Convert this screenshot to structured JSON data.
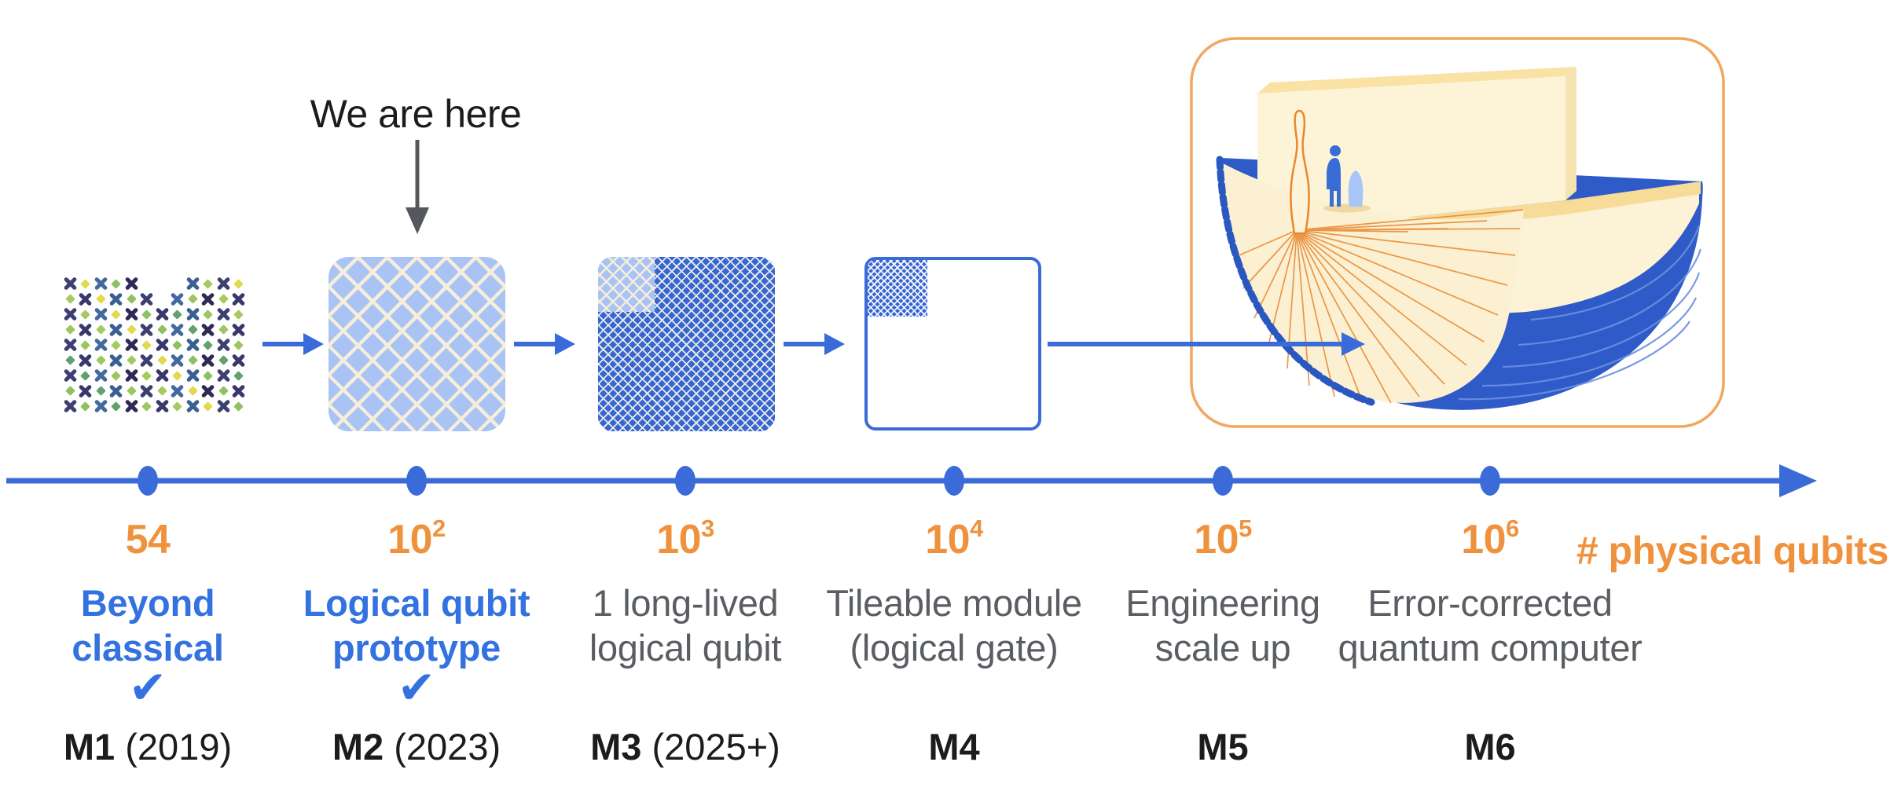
{
  "header": {
    "we_are_here": "We are here"
  },
  "axis": {
    "label": "# physical qubits"
  },
  "milestones": [
    {
      "count": "54",
      "sup": "",
      "line1": "Beyond",
      "line2": "classical",
      "status": "done",
      "check": "✔",
      "m_id": "M1",
      "m_suffix": " (2019)"
    },
    {
      "count": "10",
      "sup": "2",
      "line1": "Logical qubit",
      "line2": "prototype",
      "status": "done",
      "check": "✔",
      "m_id": "M2",
      "m_suffix": " (2023)"
    },
    {
      "count": "10",
      "sup": "3",
      "line1": "1 long-lived",
      "line2": "logical qubit",
      "status": "future",
      "check": "",
      "m_id": "M3",
      "m_suffix": " (2025+)"
    },
    {
      "count": "10",
      "sup": "4",
      "line1": "Tileable module",
      "line2": "(logical gate)",
      "status": "future",
      "check": "",
      "m_id": "M4",
      "m_suffix": ""
    },
    {
      "count": "10",
      "sup": "5",
      "line1": "Engineering",
      "line2": "scale up",
      "status": "future",
      "check": "",
      "m_id": "M5",
      "m_suffix": ""
    },
    {
      "count": "10",
      "sup": "6",
      "line1": "Error-corrected",
      "line2": "quantum computer",
      "status": "future",
      "check": "",
      "m_id": "M6",
      "m_suffix": ""
    }
  ],
  "colors": {
    "orange_text": "#f0923d",
    "blue_text": "#3372e0",
    "gray_text": "#5a5d62",
    "black_text": "#1b1c1e",
    "axis_blue": "#3b6bd8",
    "sq_light": "#a9c4f4",
    "sq_light_line": "#f6eeda",
    "sq_dark": "#3765d2",
    "sq_dark_line": "#e9ece6",
    "border_orange": "#f2a65e",
    "shell_blue": "#2e5bc7",
    "cream": "#fdf3d7",
    "gold": "#f7db99",
    "fan_orange": "#e8872e",
    "person_blue": "#3a6cd6",
    "shadow_blue": "#a9c5f7",
    "arrow_gray": "#54575b"
  },
  "icon1": {
    "cols": 12,
    "rows": 9,
    "dx": 19.5,
    "dy": 19.5,
    "skips": [
      [
        0,
        5
      ],
      [
        0,
        6
      ],
      [
        0,
        7
      ],
      [
        1,
        6
      ]
    ],
    "x_colors": [
      "#3c3f70",
      "#46679c",
      "#2e2a55",
      "#4d7d9e",
      "#3a5f93",
      "#2c1e4e",
      "#44699f",
      "#53808f",
      "#39376b",
      "#4e8a96"
    ],
    "d_colors": [
      "#6fae76",
      "#8fc162",
      "#5b9a8e",
      "#a5cb5f",
      "#74b184",
      "#60a16d",
      "#8fbf63",
      "#e3d94f",
      "#57958b",
      "#9cc75e"
    ]
  }
}
